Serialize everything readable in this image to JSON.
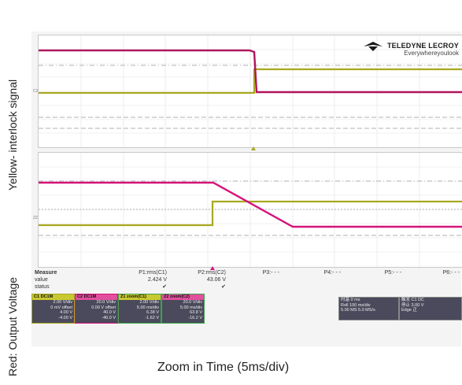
{
  "labels": {
    "left_top": "Yellow- interlock signal",
    "left_bottom": "Red: Output Voltage",
    "caption": "Zoom in Time (5ms/div)"
  },
  "logo": {
    "brand": "TELEDYNE LECROY",
    "tagline": "Everywhereyoulook"
  },
  "colors": {
    "yellow": "#a8a820",
    "red": "#d6137a",
    "grid_bg": "#ffffff",
    "panel": "#4a4a5c"
  },
  "channel_markers": {
    "c1": "C2",
    "z": "Z2"
  },
  "measure": {
    "header": "Measure",
    "rows": [
      "value",
      "status"
    ],
    "params": [
      {
        "name": "P1:rms(C1)",
        "value": "2.424 V",
        "status": "✔"
      },
      {
        "name": "P2:rms(C2)",
        "value": "43.06 V",
        "status": "✔"
      },
      {
        "name": "P3:- - -",
        "value": "",
        "status": ""
      },
      {
        "name": "P4:- - -",
        "value": "",
        "status": ""
      },
      {
        "name": "P5:- - -",
        "value": "",
        "status": ""
      },
      {
        "name": "P6:- - -",
        "value": "",
        "status": ""
      }
    ]
  },
  "channel_boxes": [
    {
      "id": "C1",
      "tag": "DC1M",
      "lines": [
        "2.00 V/div",
        "0 mV offset",
        "4.00 V",
        "-4.00 V",
        "-8.00 V"
      ],
      "border": "#a8a820"
    },
    {
      "id": "C2",
      "tag": "DC1M",
      "lines": [
        "20.0 V/div",
        "0.00 V offset",
        "40.0 V",
        "-40.0 V",
        "-80.0 V"
      ],
      "border": "#d6137a"
    },
    {
      "id": "Z1",
      "tag": "zoom(C1)",
      "lines": [
        "2.00 V/div",
        "5.00 ms/div",
        "6.38 V",
        "-1.62 V",
        "-8.00 V"
      ],
      "border": "#3fa34d"
    },
    {
      "id": "Z2",
      "tag": "zoom(C2)",
      "lines": [
        "20.0 V/div",
        "5.00 ms/div",
        "63.8 V",
        "-16.2 V",
        "-80.0 V"
      ],
      "border": "#3fa34d"
    }
  ],
  "timebase": {
    "lines": [
      "时基    0 ms",
      "Roll    100 ms/div",
      "5.00 MS  5.0 MS/s"
    ]
  },
  "trigger": {
    "lines": [
      "触发   C1 DC",
      "停止   3.00 V",
      "Edge   正"
    ]
  }
}
